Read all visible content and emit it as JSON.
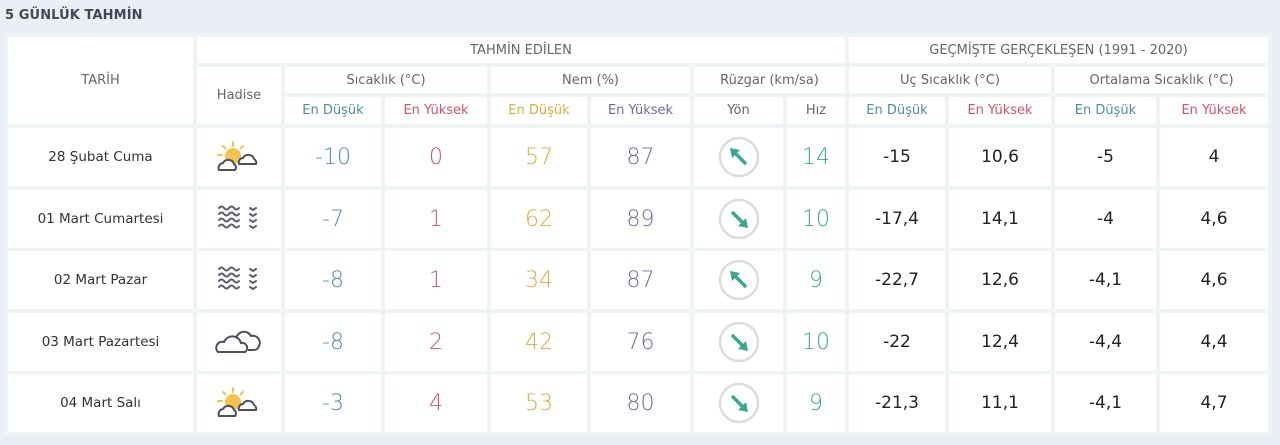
{
  "title": "5 GÜNLÜK TAHMİN",
  "header": {
    "date": "TARİH",
    "event": "Hadise",
    "forecast_group": "TAHMİN EDİLEN",
    "history_group": "GEÇMİŞTE GERÇEKLEŞEN (1991 - 2020)",
    "temp": "Sıcaklık (°C)",
    "humidity": "Nem (%)",
    "wind": "Rüzgar (km/sa)",
    "extreme_temp": "Uç Sıcaklık (°C)",
    "avg_temp": "Ortalama Sıcaklık (°C)",
    "low": "En Düşük",
    "high": "En Yüksek",
    "direction": "Yön",
    "speed": "Hız"
  },
  "colors": {
    "low": "#4a8ea8",
    "high": "#d2536b",
    "humidity_low": "#e3a83c",
    "humidity_high": "#7565a6",
    "wind": "#3aa88e"
  },
  "rows": [
    {
      "date": "28 Şubat Cuma",
      "icon": "partly-cloudy-icon",
      "temp_low": "-10",
      "temp_high": "0",
      "hum_low": "57",
      "hum_high": "87",
      "wind_dir": "northwest",
      "wind_speed": "14",
      "ext_low": "-15",
      "ext_high": "10,6",
      "avg_low": "-5",
      "avg_high": "4"
    },
    {
      "date": "01 Mart Cumartesi",
      "icon": "fog-icon",
      "temp_low": "-7",
      "temp_high": "1",
      "hum_low": "62",
      "hum_high": "89",
      "wind_dir": "southeast",
      "wind_speed": "10",
      "ext_low": "-17,4",
      "ext_high": "14,1",
      "avg_low": "-4",
      "avg_high": "4,6"
    },
    {
      "date": "02 Mart Pazar",
      "icon": "fog-icon",
      "temp_low": "-8",
      "temp_high": "1",
      "hum_low": "34",
      "hum_high": "87",
      "wind_dir": "northwest",
      "wind_speed": "9",
      "ext_low": "-22,7",
      "ext_high": "12,6",
      "avg_low": "-4,1",
      "avg_high": "4,6"
    },
    {
      "date": "03 Mart Pazartesi",
      "icon": "cloudy-icon",
      "temp_low": "-8",
      "temp_high": "2",
      "hum_low": "42",
      "hum_high": "76",
      "wind_dir": "southeast",
      "wind_speed": "10",
      "ext_low": "-22",
      "ext_high": "12,4",
      "avg_low": "-4,4",
      "avg_high": "4,4"
    },
    {
      "date": "04 Mart Salı",
      "icon": "partly-cloudy-icon",
      "temp_low": "-3",
      "temp_high": "4",
      "hum_low": "53",
      "hum_high": "80",
      "wind_dir": "southeast",
      "wind_speed": "9",
      "ext_low": "-21,3",
      "ext_high": "11,1",
      "avg_low": "-4,1",
      "avg_high": "4,7"
    }
  ]
}
